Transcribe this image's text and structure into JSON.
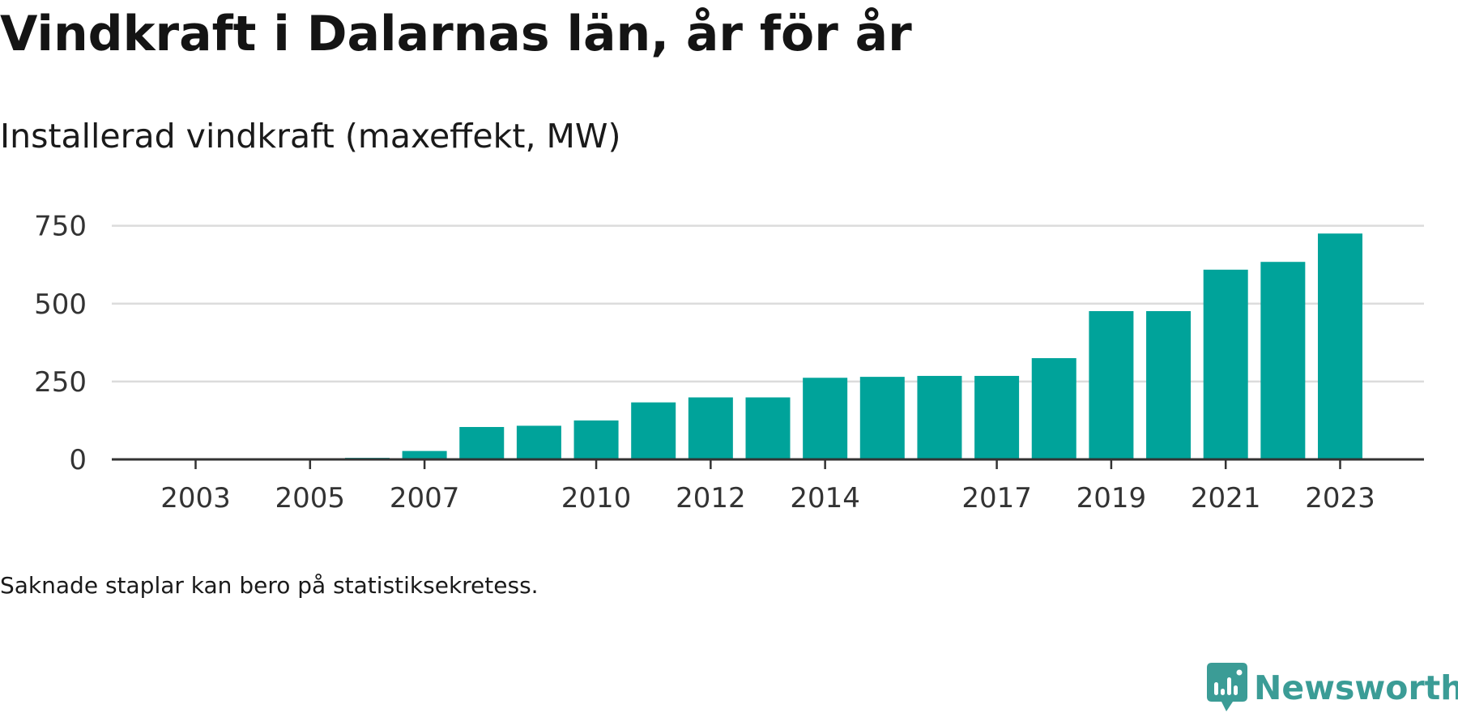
{
  "header": {
    "title": "Vindkraft i Dalarnas län, år för år",
    "subtitle": "Installerad vindkraft (maxeffekt, MW)"
  },
  "footnote": "Saknade staplar kan bero på statistiksekretess.",
  "brand": {
    "name": "Newsworthy",
    "color": "#3b9c96"
  },
  "colors": {
    "bar": "#00a39a",
    "grid": "#dcdcdc",
    "axis": "#333333",
    "text": "#333333"
  },
  "chart_data": {
    "type": "bar",
    "title": "Installerad vindkraft (maxeffekt, MW)",
    "xlabel": "",
    "ylabel": "",
    "categories": [
      "2003",
      "2004",
      "2005",
      "2006",
      "2007",
      "2008",
      "2009",
      "2010",
      "2011",
      "2012",
      "2013",
      "2014",
      "2015",
      "2016",
      "2017",
      "2018",
      "2019",
      "2020",
      "2021",
      "2022",
      "2023"
    ],
    "values": [
      0,
      0,
      0,
      5,
      27,
      104,
      108,
      125,
      183,
      199,
      199,
      262,
      265,
      268,
      268,
      325,
      476,
      476,
      609,
      634,
      725
    ],
    "x_tick_labels": [
      "2003",
      "",
      "2005",
      "",
      "2007",
      "",
      "",
      "2010",
      "",
      "2012",
      "",
      "2014",
      "",
      "",
      "2017",
      "",
      "2019",
      "",
      "2021",
      "",
      "2023"
    ],
    "yticks": [
      0,
      250,
      500,
      750
    ],
    "ylim": [
      0,
      800
    ],
    "grid": true,
    "legend": "none"
  }
}
